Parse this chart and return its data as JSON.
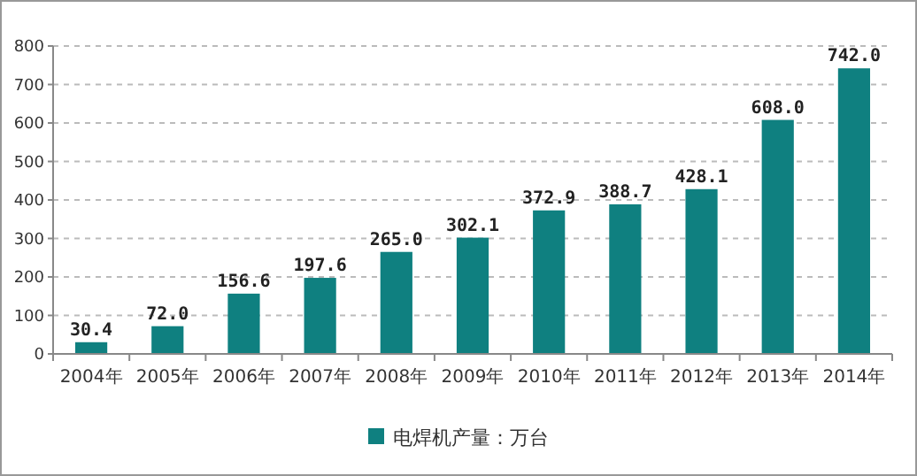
{
  "chart_data": {
    "type": "bar",
    "categories": [
      "2004年",
      "2005年",
      "2006年",
      "2007年",
      "2008年",
      "2009年",
      "2010年",
      "2011年",
      "2012年",
      "2013年",
      "2014年"
    ],
    "series": [
      {
        "name": "电焊机产量：万台",
        "color": "#0f8080",
        "values": [
          30.4,
          72.0,
          156.6,
          197.6,
          265.0,
          302.1,
          372.9,
          388.7,
          428.1,
          608.0,
          742.0
        ],
        "value_labels": [
          "30.4",
          "72.0",
          "156.6",
          "197.6",
          "265.0",
          "302.1",
          "372.9",
          "388.7",
          "428.1",
          "608.0",
          "742.0"
        ]
      }
    ],
    "ylim": [
      0,
      800
    ],
    "yticks": [
      0,
      100,
      200,
      300,
      400,
      500,
      600,
      700,
      800
    ],
    "grid": "y",
    "legend": "bottom"
  }
}
